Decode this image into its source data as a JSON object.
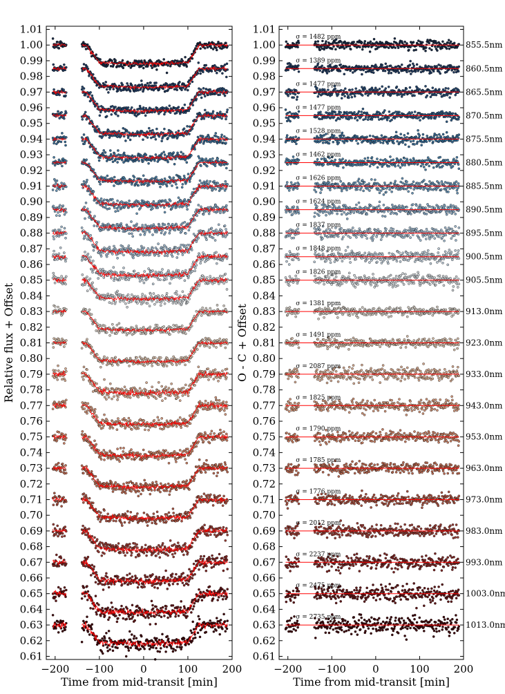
{
  "chart_data": [
    {
      "type": "scatter",
      "panel": "light-curves",
      "xlabel": "Time from mid-transit [min]",
      "ylabel": "Relative flux + Offset",
      "xlim": [
        -220,
        200
      ],
      "ylim": [
        0.608,
        1.012
      ],
      "xticks": [
        "−200",
        "−100",
        "0",
        "100",
        "200"
      ],
      "xtick_values": [
        -200,
        -100,
        0,
        100,
        200
      ],
      "ytick_values": [
        1.01,
        1.0,
        0.99,
        0.98,
        0.97,
        0.96,
        0.95,
        0.94,
        0.93,
        0.92,
        0.91,
        0.9,
        0.89,
        0.88,
        0.87,
        0.86,
        0.85,
        0.84,
        0.83,
        0.82,
        0.81,
        0.8,
        0.79,
        0.78,
        0.77,
        0.76,
        0.75,
        0.74,
        0.73,
        0.72,
        0.71,
        0.7,
        0.69,
        0.68,
        0.67,
        0.66,
        0.65,
        0.64,
        0.63,
        0.62,
        0.61
      ],
      "ytick_labels": [
        "1.01",
        "1.00",
        "0.99",
        "0.98",
        "0.97",
        "0.96",
        "0.95",
        "0.94",
        "0.93",
        "0.92",
        "0.91",
        "0.90",
        "0.89",
        "0.88",
        "0.87",
        "0.86",
        "0.85",
        "0.84",
        "0.83",
        "0.82",
        "0.81",
        "0.80",
        "0.79",
        "0.78",
        "0.77",
        "0.76",
        "0.75",
        "0.74",
        "0.73",
        "0.72",
        "0.71",
        "0.70",
        "0.69",
        "0.68",
        "0.67",
        "0.66",
        "0.65",
        "0.64",
        "0.63",
        "0.62",
        "0.61"
      ],
      "transit_depth": 0.012,
      "ingress_egress_times": [
        -130,
        -100,
        100,
        125
      ],
      "data_gap": [
        -175,
        -140
      ],
      "model_color": "#ff0000",
      "series_baselines": [
        1.0,
        0.985,
        0.97,
        0.955,
        0.94,
        0.925,
        0.91,
        0.895,
        0.88,
        0.865,
        0.85,
        0.83,
        0.81,
        0.79,
        0.77,
        0.75,
        0.73,
        0.71,
        0.69,
        0.67,
        0.65,
        0.63
      ]
    },
    {
      "type": "scatter",
      "panel": "residuals",
      "xlabel": "Time from mid-transit [min]",
      "ylabel": "O - C + Offset",
      "xlim": [
        -220,
        200
      ],
      "ylim": [
        0.608,
        1.012
      ],
      "xticks": [
        "−200",
        "−100",
        "0",
        "100",
        "200"
      ],
      "xtick_values": [
        -200,
        -100,
        0,
        100,
        200
      ],
      "ytick_values": [
        1.01,
        1.0,
        0.99,
        0.98,
        0.97,
        0.96,
        0.95,
        0.94,
        0.93,
        0.92,
        0.91,
        0.9,
        0.89,
        0.88,
        0.87,
        0.86,
        0.85,
        0.84,
        0.83,
        0.82,
        0.81,
        0.8,
        0.79,
        0.78,
        0.77,
        0.76,
        0.75,
        0.74,
        0.73,
        0.72,
        0.71,
        0.7,
        0.69,
        0.68,
        0.67,
        0.66,
        0.65,
        0.64,
        0.63,
        0.62,
        0.61
      ],
      "ytick_labels": [
        "1.01",
        "1.00",
        "0.99",
        "0.98",
        "0.97",
        "0.96",
        "0.95",
        "0.94",
        "0.93",
        "0.92",
        "0.91",
        "0.90",
        "0.89",
        "0.88",
        "0.87",
        "0.86",
        "0.85",
        "0.84",
        "0.83",
        "0.82",
        "0.81",
        "0.80",
        "0.79",
        "0.78",
        "0.77",
        "0.76",
        "0.75",
        "0.74",
        "0.73",
        "0.72",
        "0.71",
        "0.70",
        "0.69",
        "0.68",
        "0.67",
        "0.66",
        "0.65",
        "0.64",
        "0.63",
        "0.62",
        "0.61"
      ],
      "series": [
        {
          "name": "855.5nm",
          "offset": 1.0,
          "sigma_ppm": 1482,
          "sigma_label": "σ = 1482 ppm",
          "color": "#1b2b45"
        },
        {
          "name": "860.5nm",
          "offset": 0.985,
          "sigma_ppm": 1389,
          "sigma_label": "σ = 1389 ppm",
          "color": "#213a5e"
        },
        {
          "name": "865.5nm",
          "offset": 0.97,
          "sigma_ppm": 1477,
          "sigma_label": "σ = 1477 ppm",
          "color": "#27486f"
        },
        {
          "name": "870.5nm",
          "offset": 0.955,
          "sigma_ppm": 1477,
          "sigma_label": "σ = 1477 ppm",
          "color": "#2f5880"
        },
        {
          "name": "875.5nm",
          "offset": 0.94,
          "sigma_ppm": 1528,
          "sigma_label": "σ = 1528 ppm",
          "color": "#3a6a92"
        },
        {
          "name": "880.5nm",
          "offset": 0.925,
          "sigma_ppm": 1462,
          "sigma_label": "σ = 1462 ppm",
          "color": "#4c7ea3"
        },
        {
          "name": "885.5nm",
          "offset": 0.91,
          "sigma_ppm": 1626,
          "sigma_label": "σ = 1626 ppm",
          "color": "#6892b3"
        },
        {
          "name": "890.5nm",
          "offset": 0.895,
          "sigma_ppm": 1624,
          "sigma_label": "σ = 1624 ppm",
          "color": "#85a6c1"
        },
        {
          "name": "895.5nm",
          "offset": 0.88,
          "sigma_ppm": 1837,
          "sigma_label": "σ = 1837 ppm",
          "color": "#a0b8cc"
        },
        {
          "name": "900.5nm",
          "offset": 0.865,
          "sigma_ppm": 1848,
          "sigma_label": "σ = 1848 ppm",
          "color": "#b8c6d2"
        },
        {
          "name": "905.5nm",
          "offset": 0.85,
          "sigma_ppm": 1826,
          "sigma_label": "σ = 1826 ppm",
          "color": "#c8cdd1"
        },
        {
          "name": "913.0nm",
          "offset": 0.83,
          "sigma_ppm": 1381,
          "sigma_label": "σ = 1381 ppm",
          "color": "#cdc6bd"
        },
        {
          "name": "923.0nm",
          "offset": 0.81,
          "sigma_ppm": 1491,
          "sigma_label": "σ = 1491 ppm",
          "color": "#d0b9a6"
        },
        {
          "name": "933.0nm",
          "offset": 0.79,
          "sigma_ppm": 2087,
          "sigma_label": "σ = 2087 ppm",
          "color": "#d2a88f"
        },
        {
          "name": "943.0nm",
          "offset": 0.77,
          "sigma_ppm": 1825,
          "sigma_label": "σ = 1825 ppm",
          "color": "#cf957a"
        },
        {
          "name": "953.0nm",
          "offset": 0.75,
          "sigma_ppm": 1790,
          "sigma_label": "σ = 1790 ppm",
          "color": "#c67f64"
        },
        {
          "name": "963.0nm",
          "offset": 0.73,
          "sigma_ppm": 1785,
          "sigma_label": "σ = 1785 ppm",
          "color": "#b96a52"
        },
        {
          "name": "973.0nm",
          "offset": 0.71,
          "sigma_ppm": 1776,
          "sigma_label": "σ = 1776 ppm",
          "color": "#a95443"
        },
        {
          "name": "983.0nm",
          "offset": 0.69,
          "sigma_ppm": 2012,
          "sigma_label": "σ = 2012 ppm",
          "color": "#963d35"
        },
        {
          "name": "993.0nm",
          "offset": 0.67,
          "sigma_ppm": 2237,
          "sigma_label": "σ = 2237 ppm",
          "color": "#7d2826"
        },
        {
          "name": "1003.0nm",
          "offset": 0.65,
          "sigma_ppm": 2475,
          "sigma_label": "σ = 2475 ppm",
          "color": "#5f1718"
        },
        {
          "name": "1013.0nm",
          "offset": 0.63,
          "sigma_ppm": 2735,
          "sigma_label": "σ = 2735 ppm",
          "color": "#3f0b0e"
        }
      ]
    }
  ]
}
